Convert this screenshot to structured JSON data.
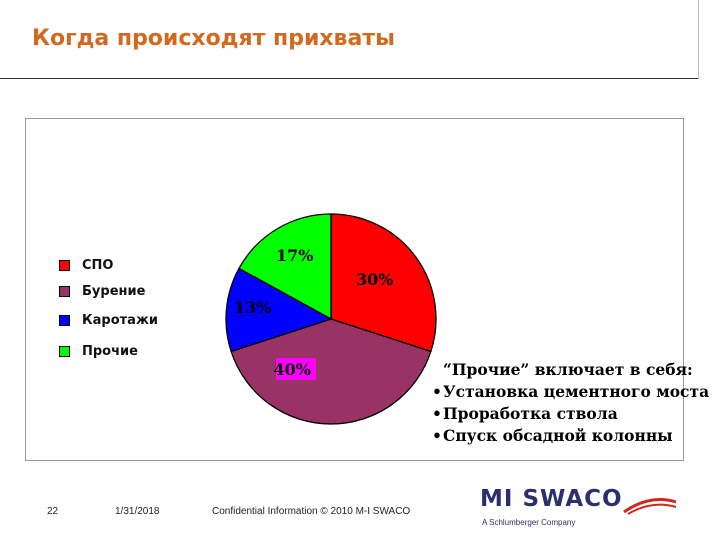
{
  "slide": {
    "title": "Когда происходят прихваты",
    "page_number": "22",
    "date": "1/31/2018",
    "confidential": "Confidential Information  © 2010 M-I SWACO",
    "logo_text": "MI SWACO",
    "logo_subtitle": "A Schlumberger Company"
  },
  "note": {
    "title": "“Прочие” включает в себя:",
    "items": [
      "Установка цементного моста",
      "Проработка ствола",
      "Спуск обсадной колонны"
    ],
    "bullet": "•"
  },
  "chart_data": {
    "type": "pie",
    "title": "",
    "legend_position": "left",
    "categories": [
      "СПО",
      "Бурение",
      "Каротажи",
      "Прочие"
    ],
    "values": [
      30,
      40,
      13,
      17
    ],
    "labels": [
      "30%",
      "40%",
      "13%",
      "17%"
    ],
    "colors": [
      "#ff0000",
      "#993366",
      "#0000ff",
      "#00ff00"
    ],
    "label_highlight": "#ff00ff"
  }
}
